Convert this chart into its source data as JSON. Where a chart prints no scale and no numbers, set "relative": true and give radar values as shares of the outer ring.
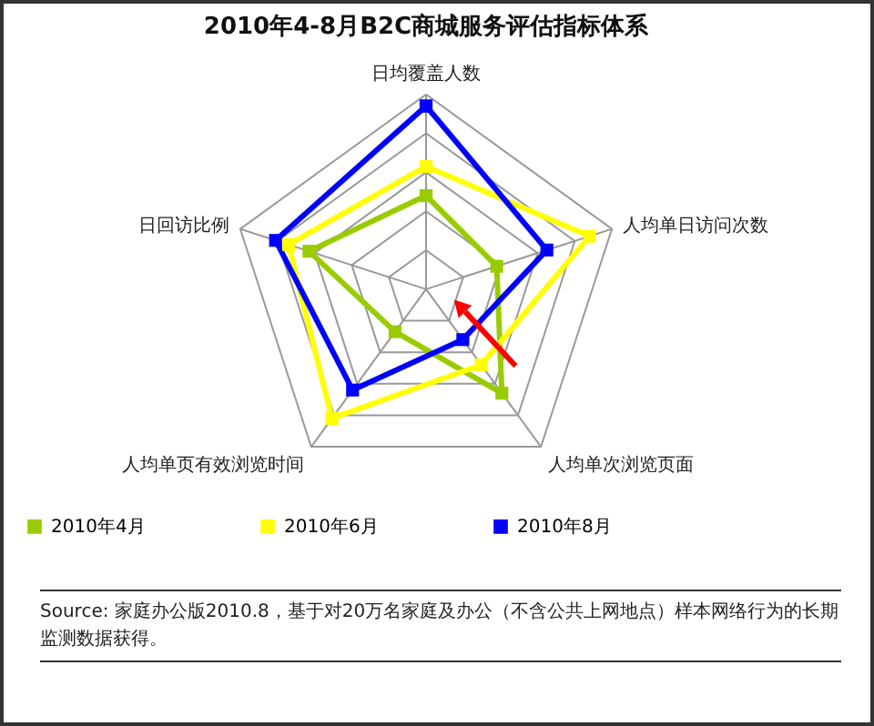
{
  "chart_data": {
    "type": "radar",
    "title": "2010年4-8月B2C商城服务评估指标体系",
    "relative": true,
    "grid": true,
    "legend": "bottom",
    "marker": "square",
    "categories": [
      "日均覆盖人数",
      "人均单日访问次数",
      "人均单次浏览页面",
      "人均单页有效浏览时间",
      "日回访比例"
    ],
    "series": [
      {
        "name": "2010年4月",
        "color": "#99cc00",
        "values": [
          0.48,
          0.38,
          0.66,
          0.27,
          0.63
        ]
      },
      {
        "name": "2010年6月",
        "color": "#ffff00",
        "values": [
          0.63,
          0.88,
          0.48,
          0.82,
          0.74
        ]
      },
      {
        "name": "2010年8月",
        "color": "#0000ff",
        "values": [
          0.94,
          0.65,
          0.32,
          0.64,
          0.81
        ]
      }
    ],
    "annotations": [
      "Source: 家庭办公版2010.8，基于对20万名家庭及办公（不含公共上网地点）样本网络行为的长期监测数据获得。"
    ]
  }
}
